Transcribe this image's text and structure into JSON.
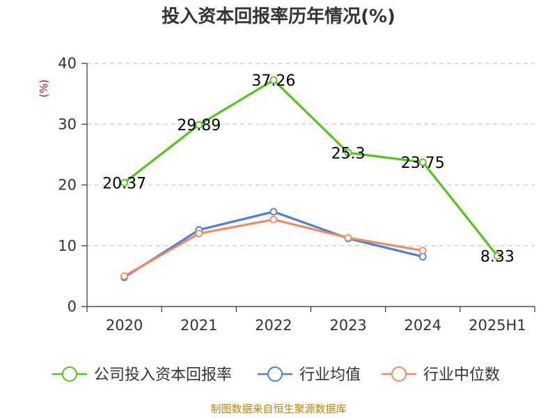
{
  "chart_data": {
    "type": "line",
    "title": "投入资本回报率历年情况(%)",
    "ylabel": "(%)",
    "ylim": [
      0,
      40
    ],
    "yticks": [
      0,
      10,
      20,
      30,
      40
    ],
    "categories": [
      "2020",
      "2021",
      "2022",
      "2023",
      "2024",
      "2025H1"
    ],
    "grid": true,
    "legend_position": "bottom",
    "series": [
      {
        "name": "公司投入资本回报率",
        "color": "#52c41a",
        "values": [
          20.37,
          29.89,
          37.26,
          25.3,
          23.75,
          8.33
        ],
        "labels": [
          "20.37",
          "29.89",
          "37.26",
          "25.3",
          "23.75",
          "8.33"
        ]
      },
      {
        "name": "行业均值",
        "color": "#4a7ee0",
        "values": [
          4.8,
          12.6,
          15.6,
          11.2,
          8.2,
          null
        ]
      },
      {
        "name": "行业中位数",
        "color": "#f4895f",
        "values": [
          5.0,
          12.0,
          14.3,
          11.3,
          9.2,
          null
        ]
      }
    ]
  },
  "source": "制图数据来自恒生聚源数据库"
}
